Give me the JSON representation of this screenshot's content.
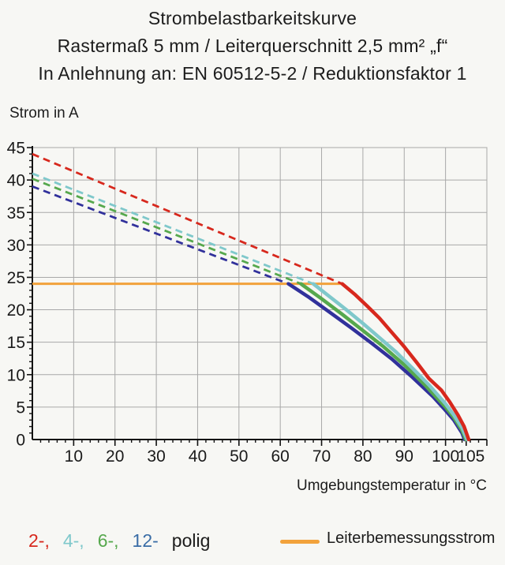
{
  "page": {
    "background": "#f7f7f4"
  },
  "title": {
    "line1": "Strombelastbarkeitskurve",
    "line2": "Rastermaß 5 mm / Leiterquerschnitt 2,5 mm² „f“",
    "line3": "In Anlehnung an: EN 60512-5-2 / Reduktionsfaktor 1"
  },
  "chart_data": {
    "type": "line",
    "title": "Strombelastbarkeitskurve",
    "ylabel": "Strom in A",
    "xlabel": "Umgebungstemperatur in °C",
    "xlim": [
      0,
      110
    ],
    "ylim": [
      0,
      45
    ],
    "grid": {
      "x_step": 10,
      "y_step": 5,
      "color": "#a8a8a8"
    },
    "axis_color": "#111111",
    "x_minor_step": 2,
    "y_minor_step": 1,
    "x_ticks": [
      {
        "v": 10,
        "label": "10"
      },
      {
        "v": 20,
        "label": "20"
      },
      {
        "v": 30,
        "label": "30"
      },
      {
        "v": 40,
        "label": "40"
      },
      {
        "v": 50,
        "label": "50"
      },
      {
        "v": 60,
        "label": "60"
      },
      {
        "v": 70,
        "label": "70"
      },
      {
        "v": 80,
        "label": "80"
      },
      {
        "v": 90,
        "label": "90"
      },
      {
        "v": 100,
        "label": "100"
      },
      {
        "v": 105,
        "label": "105",
        "dx": 6
      }
    ],
    "y_ticks": [
      {
        "v": 0,
        "label": "0"
      },
      {
        "v": 5,
        "label": "5"
      },
      {
        "v": 10,
        "label": "10"
      },
      {
        "v": 15,
        "label": "15"
      },
      {
        "v": 20,
        "label": "20"
      },
      {
        "v": 25,
        "label": "25"
      },
      {
        "v": 30,
        "label": "30"
      },
      {
        "v": 35,
        "label": "35"
      },
      {
        "v": 40,
        "label": "40"
      },
      {
        "v": 45,
        "label": "45"
      }
    ],
    "reference_line": {
      "name": "Leiterbemessungsstrom",
      "value": 24,
      "x_start": 0,
      "x_end": 75,
      "color": "#f2a23b"
    },
    "series": [
      {
        "name": "2-polig",
        "color": "#d7281d",
        "dashed": [
          [
            0,
            44
          ],
          [
            75,
            24
          ]
        ],
        "solid": [
          [
            75,
            24
          ],
          [
            78,
            22.4
          ],
          [
            81,
            20.6
          ],
          [
            84,
            18.7
          ],
          [
            87,
            16.5
          ],
          [
            90,
            14.3
          ],
          [
            93,
            11.9
          ],
          [
            96,
            9.4
          ],
          [
            99,
            7.6
          ],
          [
            101,
            5.8
          ],
          [
            103,
            3.8
          ],
          [
            104.5,
            2.0
          ],
          [
            105.6,
            0
          ]
        ]
      },
      {
        "name": "4-polig",
        "color": "#7fc8cb",
        "dashed": [
          [
            0,
            41
          ],
          [
            68,
            24
          ]
        ],
        "solid": [
          [
            68,
            24
          ],
          [
            72,
            22.0
          ],
          [
            76,
            20.0
          ],
          [
            80,
            17.9
          ],
          [
            84,
            15.7
          ],
          [
            88,
            13.5
          ],
          [
            92,
            11.0
          ],
          [
            96,
            8.4
          ],
          [
            100,
            5.5
          ],
          [
            102,
            3.8
          ],
          [
            104,
            1.8
          ],
          [
            105.2,
            0
          ]
        ]
      },
      {
        "name": "6-polig",
        "color": "#56a84d",
        "dashed": [
          [
            0,
            40.2
          ],
          [
            65,
            24
          ]
        ],
        "solid": [
          [
            65,
            24
          ],
          [
            70,
            21.7
          ],
          [
            75,
            19.3
          ],
          [
            80,
            16.8
          ],
          [
            85,
            14.3
          ],
          [
            90,
            11.5
          ],
          [
            95,
            8.4
          ],
          [
            100,
            5.0
          ],
          [
            102,
            3.4
          ],
          [
            104,
            1.4
          ],
          [
            104.9,
            0
          ]
        ]
      },
      {
        "name": "12-polig",
        "color": "#31319b",
        "dashed": [
          [
            0,
            39
          ],
          [
            62,
            24
          ]
        ],
        "solid": [
          [
            62,
            24
          ],
          [
            67,
            21.9
          ],
          [
            72,
            19.6
          ],
          [
            77,
            17.3
          ],
          [
            82,
            14.9
          ],
          [
            87,
            12.4
          ],
          [
            92,
            9.6
          ],
          [
            97,
            6.6
          ],
          [
            100,
            4.5
          ],
          [
            102,
            3.0
          ],
          [
            104,
            1.0
          ],
          [
            104.6,
            0
          ]
        ]
      }
    ]
  },
  "legend": {
    "poles": [
      {
        "label": "2-,",
        "color": "#d7281d"
      },
      {
        "label": "4-,",
        "color": "#7fc8cb"
      },
      {
        "label": "6-,",
        "color": "#56a84d"
      },
      {
        "label": "12-",
        "color": "#3a6da6"
      }
    ],
    "suffix": "polig",
    "reference": {
      "label": "Leiterbemessungsstrom",
      "color": "#f2a23b"
    }
  }
}
